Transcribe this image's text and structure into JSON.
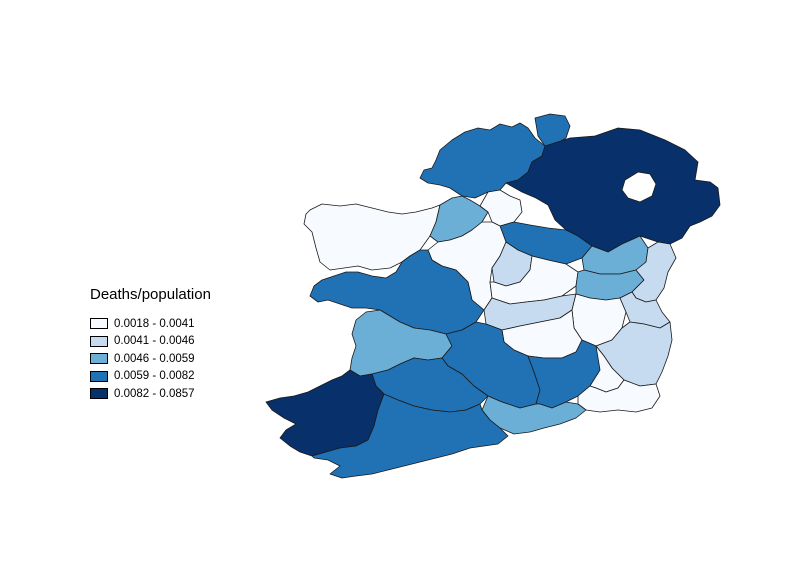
{
  "legend": {
    "title": "Deaths/population",
    "items": [
      {
        "label": "0.0018 - 0.0041",
        "color": "#f7fbff"
      },
      {
        "label": "0.0041 - 0.0046",
        "color": "#c6dbef"
      },
      {
        "label": "0.0046 - 0.0059",
        "color": "#6baed6"
      },
      {
        "label": "0.0059 - 0.0082",
        "color": "#2171b5"
      },
      {
        "label": "0.0082 - 0.0857",
        "color": "#08306b"
      }
    ]
  },
  "regions": [
    {
      "name": "donegal",
      "class": 3
    },
    {
      "name": "inishowen",
      "class": 3
    },
    {
      "name": "northern-ireland",
      "class": 4
    },
    {
      "name": "mayo",
      "class": 0
    },
    {
      "name": "sligo",
      "class": 2
    },
    {
      "name": "leitrim",
      "class": 0
    },
    {
      "name": "cavan",
      "class": 3
    },
    {
      "name": "monaghan",
      "class": 2
    },
    {
      "name": "roscommon",
      "class": 0
    },
    {
      "name": "galway",
      "class": 3
    },
    {
      "name": "longford",
      "class": 1
    },
    {
      "name": "westmeath",
      "class": 0
    },
    {
      "name": "meath",
      "class": 2
    },
    {
      "name": "louth",
      "class": 1
    },
    {
      "name": "offaly",
      "class": 1
    },
    {
      "name": "kildare",
      "class": 0
    },
    {
      "name": "dublin",
      "class": 1
    },
    {
      "name": "laois",
      "class": 0
    },
    {
      "name": "wicklow",
      "class": 1
    },
    {
      "name": "clare",
      "class": 2
    },
    {
      "name": "tipperary",
      "class": 3
    },
    {
      "name": "kilkenny",
      "class": 3
    },
    {
      "name": "carlow",
      "class": 0
    },
    {
      "name": "wexford",
      "class": 0
    },
    {
      "name": "limerick",
      "class": 3
    },
    {
      "name": "waterford",
      "class": 2
    },
    {
      "name": "kerry",
      "class": 4
    },
    {
      "name": "cork",
      "class": 3
    }
  ]
}
